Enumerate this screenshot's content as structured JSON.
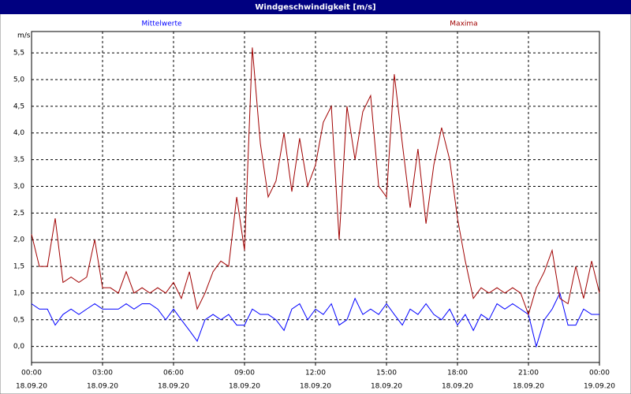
{
  "chart_data": {
    "type": "line",
    "title": "Windgeschwindigkeit [m/s]",
    "y_label": "m/s",
    "x": [
      0,
      0.33,
      0.67,
      1,
      1.33,
      1.67,
      2,
      2.33,
      2.67,
      3,
      3.33,
      3.67,
      4,
      4.33,
      4.67,
      5,
      5.33,
      5.67,
      6,
      6.33,
      6.67,
      7,
      7.33,
      7.67,
      8,
      8.33,
      8.67,
      9,
      9.33,
      9.67,
      10,
      10.33,
      10.67,
      11,
      11.33,
      11.67,
      12,
      12.33,
      12.67,
      13,
      13.33,
      13.67,
      14,
      14.33,
      14.67,
      15,
      15.33,
      15.67,
      16,
      16.33,
      16.67,
      17,
      17.33,
      17.67,
      18,
      18.33,
      18.67,
      19,
      19.33,
      19.67,
      20,
      20.33,
      20.67,
      21,
      21.33,
      21.67,
      22,
      22.33,
      22.67,
      23,
      23.33,
      23.67,
      24
    ],
    "series": [
      {
        "name": "Mittelwerte",
        "color": "#0000ff",
        "values": [
          0.8,
          0.7,
          0.7,
          0.4,
          0.6,
          0.7,
          0.6,
          0.7,
          0.8,
          0.7,
          0.7,
          0.7,
          0.8,
          0.7,
          0.8,
          0.8,
          0.7,
          0.5,
          0.7,
          0.5,
          0.3,
          0.1,
          0.5,
          0.6,
          0.5,
          0.6,
          0.4,
          0.4,
          0.7,
          0.6,
          0.6,
          0.5,
          0.3,
          0.7,
          0.8,
          0.5,
          0.7,
          0.6,
          0.8,
          0.4,
          0.5,
          0.9,
          0.6,
          0.7,
          0.6,
          0.8,
          0.6,
          0.4,
          0.7,
          0.6,
          0.8,
          0.6,
          0.5,
          0.7,
          0.4,
          0.6,
          0.3,
          0.6,
          0.5,
          0.8,
          0.7,
          0.8,
          0.7,
          0.6,
          0.0,
          0.5,
          0.7,
          1.0,
          0.4,
          0.4,
          0.7,
          0.6,
          0.6
        ]
      },
      {
        "name": "Maxima",
        "color": "#a00000",
        "values": [
          2.1,
          1.5,
          1.5,
          2.4,
          1.2,
          1.3,
          1.2,
          1.3,
          2.0,
          1.1,
          1.1,
          1.0,
          1.4,
          1.0,
          1.1,
          1.0,
          1.1,
          1.0,
          1.2,
          0.9,
          1.4,
          0.7,
          1.0,
          1.4,
          1.6,
          1.5,
          2.8,
          1.8,
          5.6,
          3.8,
          2.8,
          3.1,
          4.0,
          2.9,
          3.9,
          3.0,
          3.4,
          4.2,
          4.5,
          2.0,
          4.5,
          3.5,
          4.4,
          4.7,
          3.0,
          2.8,
          5.1,
          3.8,
          2.6,
          3.7,
          2.3,
          3.4,
          4.1,
          3.5,
          2.4,
          1.6,
          0.9,
          1.1,
          1.0,
          1.1,
          1.0,
          1.1,
          1.0,
          0.6,
          1.1,
          1.4,
          1.8,
          0.9,
          0.8,
          1.5,
          0.9,
          1.6,
          1.0
        ]
      }
    ],
    "xlim": [
      0,
      24
    ],
    "xticks": [
      {
        "value": 0,
        "label": "00:00",
        "date": "18.09.20"
      },
      {
        "value": 3,
        "label": "03:00",
        "date": "18.09.20"
      },
      {
        "value": 6,
        "label": "06:00",
        "date": "18.09.20"
      },
      {
        "value": 9,
        "label": "09:00",
        "date": "18.09.20"
      },
      {
        "value": 12,
        "label": "12:00",
        "date": "18.09.20"
      },
      {
        "value": 15,
        "label": "15:00",
        "date": "18.09.20"
      },
      {
        "value": 18,
        "label": "18:00",
        "date": "18.09.20"
      },
      {
        "value": 21,
        "label": "21:00",
        "date": "18.09.20"
      },
      {
        "value": 24,
        "label": "00:00",
        "date": "19.09.20"
      }
    ],
    "ylim": [
      -0.3,
      5.9
    ],
    "yticks": [
      {
        "value": 0,
        "label": "0,0"
      },
      {
        "value": 0.5,
        "label": "0,5"
      },
      {
        "value": 1,
        "label": "1,0"
      },
      {
        "value": 1.5,
        "label": "1,5"
      },
      {
        "value": 2,
        "label": "2,0"
      },
      {
        "value": 2.5,
        "label": "2,5"
      },
      {
        "value": 3,
        "label": "3,0"
      },
      {
        "value": 3.5,
        "label": "3,5"
      },
      {
        "value": 4,
        "label": "4,0"
      },
      {
        "value": 4.5,
        "label": "4,5"
      },
      {
        "value": 5,
        "label": "5,0"
      },
      {
        "value": 5.5,
        "label": "5,5"
      }
    ],
    "grid": true
  }
}
